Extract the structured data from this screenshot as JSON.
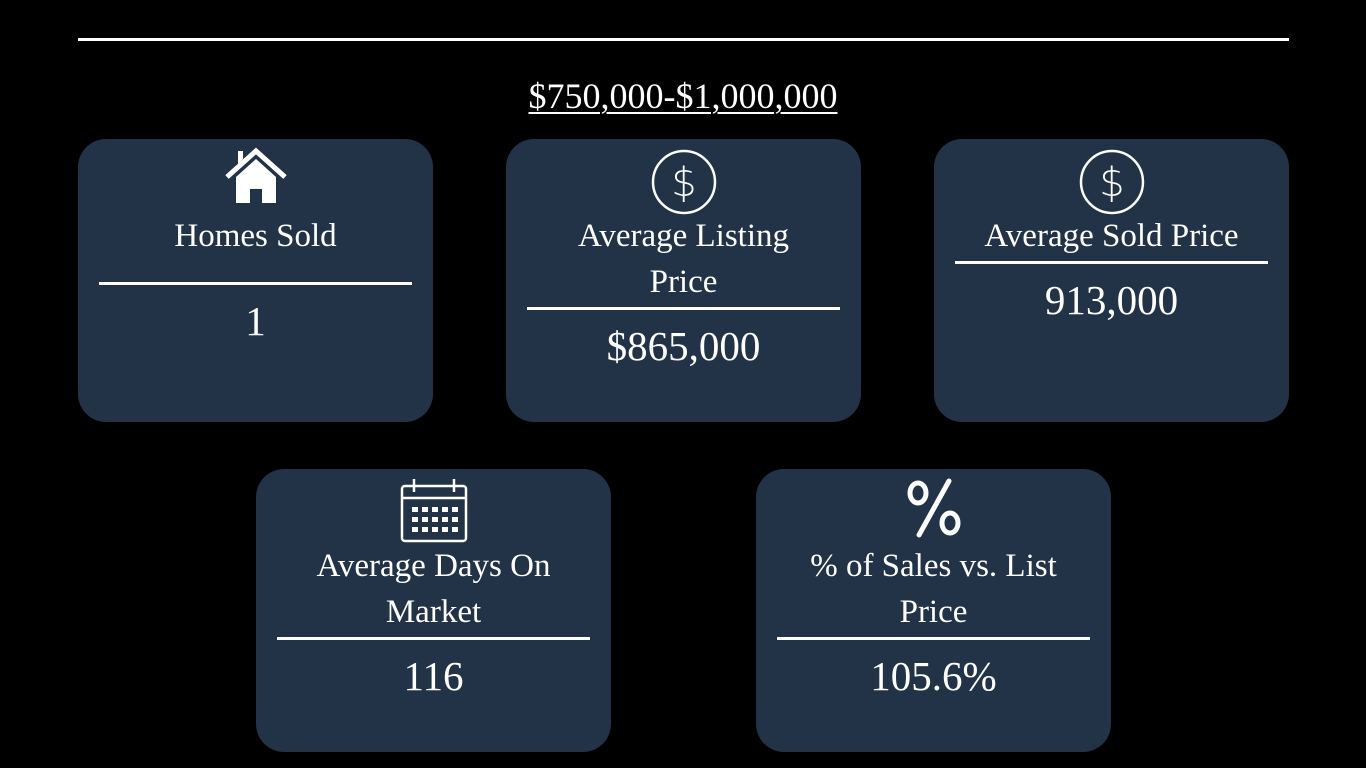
{
  "slide": {
    "title": "$750,000-$1,000,000",
    "cards": [
      {
        "icon": "house-icon",
        "label": "Homes Sold",
        "value": "1"
      },
      {
        "icon": "dollar-circle-icon",
        "label": "Average Listing Price",
        "value": "$865,000"
      },
      {
        "icon": "dollar-circle-icon",
        "label": "Average Sold Price",
        "value": "913,000"
      },
      {
        "icon": "calendar-icon",
        "label": "Average Days On Market",
        "value": "116"
      },
      {
        "icon": "percent-icon",
        "label": "% of Sales vs. List Price",
        "value": "105.6%"
      }
    ]
  },
  "colors": {
    "background": "#000000",
    "card": "#223247",
    "text": "#ffffff"
  }
}
